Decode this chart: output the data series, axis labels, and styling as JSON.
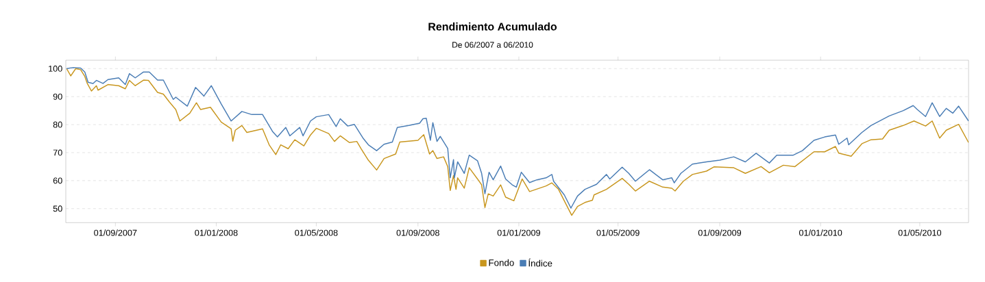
{
  "chart_data": {
    "type": "line",
    "title": "Rendimiento Acumulado",
    "subtitle": "De 06/2007 a 06/2010",
    "xlim": [
      "2007-07-03",
      "2010-06-29"
    ],
    "ylim": [
      45,
      103
    ],
    "xticks": [
      {
        "value": "2007-09-01",
        "label": "01/09/2007"
      },
      {
        "value": "2008-01-01",
        "label": "01/01/2008"
      },
      {
        "value": "2008-05-01",
        "label": "01/05/2008"
      },
      {
        "value": "2008-09-01",
        "label": "01/09/2008"
      },
      {
        "value": "2009-01-01",
        "label": "01/01/2009"
      },
      {
        "value": "2009-05-01",
        "label": "01/05/2009"
      },
      {
        "value": "2009-09-01",
        "label": "01/09/2009"
      },
      {
        "value": "2010-01-01",
        "label": "01/01/2010"
      },
      {
        "value": "2010-05-01",
        "label": "01/05/2010"
      }
    ],
    "yticks": [
      50,
      60,
      70,
      80,
      90,
      100
    ],
    "grid": "y",
    "legend": "bottom",
    "marker": "none",
    "line_style": "solid",
    "series": [
      {
        "name": "Fondo",
        "color": "#c8961e",
        "x": [
          "2007-07-04",
          "2007-07-09",
          "2007-07-15",
          "2007-07-21",
          "2007-07-26",
          "2007-07-29",
          "2007-08-03",
          "2007-08-09",
          "2007-08-11",
          "2007-08-23",
          "2007-09-05",
          "2007-09-13",
          "2007-09-18",
          "2007-09-25",
          "2007-10-05",
          "2007-10-11",
          "2007-10-22",
          "2007-10-29",
          "2007-11-05",
          "2007-11-13",
          "2007-11-18",
          "2007-11-30",
          "2007-12-08",
          "2007-12-13",
          "2007-12-25",
          "2008-01-07",
          "2008-01-19",
          "2008-01-21",
          "2008-01-24",
          "2008-02-01",
          "2008-02-07",
          "2008-02-26",
          "2008-03-05",
          "2008-03-13",
          "2008-03-19",
          "2008-03-28",
          "2008-04-05",
          "2008-04-16",
          "2008-04-24",
          "2008-05-01",
          "2008-05-16",
          "2008-05-23",
          "2008-05-30",
          "2008-06-10",
          "2008-06-19",
          "2008-06-24",
          "2008-07-03",
          "2008-07-13",
          "2008-07-22",
          "2008-08-05",
          "2008-08-10",
          "2008-09-01",
          "2008-09-08",
          "2008-09-15",
          "2008-09-19",
          "2008-09-24",
          "2008-10-02",
          "2008-10-07",
          "2008-10-10",
          "2008-10-14",
          "2008-10-17",
          "2008-10-19",
          "2008-10-27",
          "2008-11-02",
          "2008-11-12",
          "2008-11-17",
          "2008-11-21",
          "2008-11-25",
          "2008-12-01",
          "2008-12-10",
          "2008-12-16",
          "2008-12-26",
          "2009-01-05",
          "2009-01-14",
          "2009-02-03",
          "2009-02-10",
          "2009-02-18",
          "2009-02-25",
          "2009-03-06",
          "2009-03-13",
          "2009-03-22",
          "2009-03-31",
          "2009-04-02",
          "2009-04-17",
          "2009-05-06",
          "2009-05-14",
          "2009-05-22",
          "2009-06-08",
          "2009-06-24",
          "2009-07-05",
          "2009-07-09",
          "2009-07-19",
          "2009-07-30",
          "2009-08-16",
          "2009-08-25",
          "2009-09-18",
          "2009-10-02",
          "2009-10-21",
          "2009-10-31",
          "2009-11-17",
          "2009-12-01",
          "2009-12-24",
          "2010-01-06",
          "2010-01-19",
          "2010-01-23",
          "2010-02-07",
          "2010-02-20",
          "2010-03-03",
          "2010-03-17",
          "2010-03-25",
          "2010-04-11",
          "2010-04-24",
          "2010-05-08",
          "2010-05-16",
          "2010-05-25",
          "2010-06-02",
          "2010-06-17",
          "2010-06-29"
        ],
        "values": [
          100,
          97.4,
          100,
          99.6,
          97.2,
          94.7,
          92,
          93.9,
          92.3,
          94.3,
          93.9,
          92.8,
          95.8,
          93.9,
          95.9,
          95.8,
          91.5,
          90.9,
          88.2,
          85.4,
          81.3,
          84.1,
          87.8,
          85.4,
          86.2,
          80.9,
          78.5,
          74.1,
          78,
          79.7,
          77.2,
          78.5,
          72.8,
          69.3,
          72.8,
          71.4,
          74.6,
          72.4,
          76.3,
          78.7,
          76.8,
          74,
          76,
          73.6,
          74,
          71.5,
          67.3,
          63.8,
          67.9,
          69.5,
          73.8,
          74.4,
          76.4,
          69.5,
          70.7,
          67.9,
          68.5,
          65,
          56.5,
          61.8,
          56.9,
          61,
          57.3,
          64.6,
          60.6,
          58.5,
          50.4,
          55.3,
          54.5,
          58.5,
          54.1,
          52.8,
          60.6,
          56.1,
          58.1,
          59.2,
          56.9,
          52.8,
          47.6,
          50.8,
          52.2,
          53,
          54.9,
          56.9,
          60.8,
          58.7,
          56.3,
          59.8,
          57.7,
          57.3,
          56.3,
          59.8,
          62.2,
          63.4,
          64.9,
          64.6,
          62.6,
          65,
          62.8,
          65.5,
          65,
          70.3,
          70.3,
          72.2,
          69.8,
          68.7,
          73.2,
          74.6,
          74.9,
          78,
          79.7,
          81.3,
          79.5,
          81.3,
          75.2,
          78,
          80.1,
          73.6
        ]
      },
      {
        "name": "Índice",
        "color": "#4a7db5",
        "x": [
          "2007-07-04",
          "2007-07-12",
          "2007-07-21",
          "2007-07-26",
          "2007-07-30",
          "2007-08-05",
          "2007-08-09",
          "2007-08-17",
          "2007-08-23",
          "2007-09-05",
          "2007-09-13",
          "2007-09-18",
          "2007-09-25",
          "2007-10-05",
          "2007-10-12",
          "2007-10-22",
          "2007-10-29",
          "2007-11-10",
          "2007-11-13",
          "2007-11-27",
          "2007-12-07",
          "2007-12-17",
          "2007-12-26",
          "2008-01-07",
          "2008-01-19",
          "2008-02-01",
          "2008-02-13",
          "2008-02-26",
          "2008-03-09",
          "2008-03-15",
          "2008-03-25",
          "2008-03-30",
          "2008-04-11",
          "2008-04-15",
          "2008-04-24",
          "2008-05-01",
          "2008-05-16",
          "2008-05-25",
          "2008-05-30",
          "2008-06-08",
          "2008-06-16",
          "2008-06-27",
          "2008-07-03",
          "2008-07-13",
          "2008-07-22",
          "2008-08-01",
          "2008-08-07",
          "2008-08-21",
          "2008-09-03",
          "2008-09-07",
          "2008-09-11",
          "2008-09-16",
          "2008-09-19",
          "2008-09-24",
          "2008-09-28",
          "2008-10-07",
          "2008-10-10",
          "2008-10-14",
          "2008-10-15",
          "2008-10-19",
          "2008-10-27",
          "2008-11-02",
          "2008-11-12",
          "2008-11-17",
          "2008-11-21",
          "2008-11-26",
          "2008-12-01",
          "2008-12-10",
          "2008-12-16",
          "2008-12-24",
          "2008-12-29",
          "2009-01-04",
          "2009-01-14",
          "2009-01-23",
          "2009-02-03",
          "2009-02-10",
          "2009-02-12",
          "2009-02-25",
          "2009-03-05",
          "2009-03-13",
          "2009-03-22",
          "2009-04-05",
          "2009-04-17",
          "2009-04-21",
          "2009-05-06",
          "2009-05-14",
          "2009-05-22",
          "2009-06-08",
          "2009-06-24",
          "2009-07-05",
          "2009-07-08",
          "2009-07-16",
          "2009-07-30",
          "2009-08-16",
          "2009-09-01",
          "2009-09-18",
          "2009-10-02",
          "2009-10-15",
          "2009-10-31",
          "2009-11-09",
          "2009-11-29",
          "2009-12-10",
          "2009-12-24",
          "2010-01-06",
          "2010-01-19",
          "2010-01-23",
          "2010-02-02",
          "2010-02-04",
          "2010-02-20",
          "2010-03-03",
          "2010-03-25",
          "2010-04-11",
          "2010-04-23",
          "2010-04-28",
          "2010-05-08",
          "2010-05-16",
          "2010-05-25",
          "2010-06-02",
          "2010-06-10",
          "2010-06-17",
          "2010-06-29"
        ],
        "values": [
          100,
          100.4,
          100.2,
          98.8,
          95.1,
          94.7,
          95.8,
          94.7,
          96.1,
          96.7,
          94.3,
          98.2,
          96.7,
          98.8,
          98.8,
          95.9,
          95.9,
          89,
          89.8,
          86.6,
          93.3,
          90.2,
          93.9,
          87.4,
          81.3,
          84.7,
          83.6,
          83.6,
          77.6,
          75.6,
          79,
          76,
          79,
          76,
          81.3,
          82.8,
          83.6,
          79.3,
          82.1,
          79.5,
          80.1,
          75,
          72.8,
          70.7,
          73,
          73.8,
          79,
          79.7,
          80.5,
          82.1,
          82.3,
          74.4,
          80.7,
          74,
          75.8,
          71.5,
          61,
          67.5,
          61,
          66.7,
          62.6,
          69.1,
          67.1,
          62.6,
          55.3,
          63,
          60.3,
          65.2,
          60.6,
          58.5,
          57.7,
          63,
          59.3,
          60.3,
          61,
          62.2,
          59.8,
          54.9,
          50.2,
          54.5,
          56.9,
          58.7,
          62.2,
          60.6,
          64.8,
          62.6,
          59.8,
          63.9,
          60.3,
          61,
          59.2,
          62.6,
          65.9,
          66.7,
          67.3,
          68.5,
          66.7,
          69.8,
          66.3,
          69.1,
          69.1,
          70.7,
          74.4,
          75.6,
          76.3,
          73,
          75.2,
          72.8,
          77.2,
          79.7,
          83.1,
          85,
          86.8,
          85.4,
          82.9,
          87.8,
          82.9,
          85.8,
          84.1,
          86.6,
          81.3
        ]
      }
    ]
  }
}
